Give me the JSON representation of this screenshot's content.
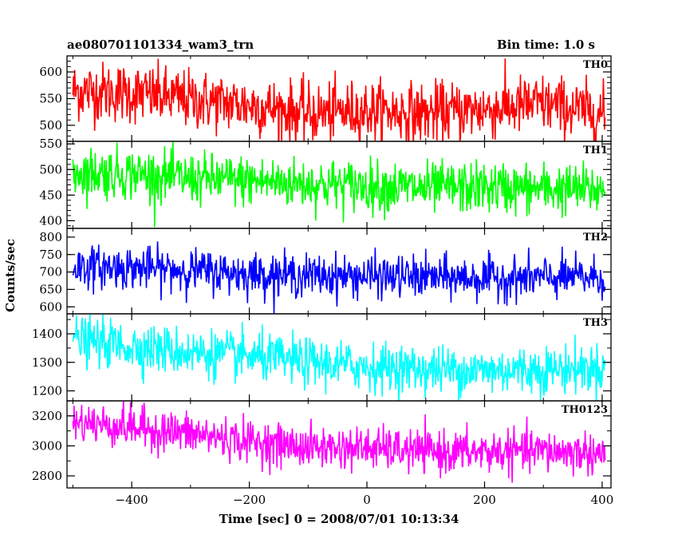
{
  "header": {
    "title": "ae080701101334_wam3_trn",
    "bin_time": "Bin time: 1.0 s"
  },
  "axes": {
    "ylabel": "Counts/sec",
    "xlabel": "Time [sec] 0 = 2008/07/01 10:13:34"
  },
  "chart_data": {
    "type": "line",
    "title": "ae080701101334_wam3_trn",
    "subtitle": "Bin time: 1.0 s",
    "xlabel": "Time [sec] 0 = 2008/07/01 10:13:34",
    "ylabel": "Counts/sec",
    "xlim": [
      -510,
      415
    ],
    "x_range": [
      -500,
      405
    ],
    "x_step": 1.0,
    "xticks": [
      -400,
      -200,
      0,
      200,
      400
    ],
    "grid": false,
    "series": [
      {
        "name": "TH0",
        "color": "#ff0000",
        "ylim": [
          470,
          630
        ],
        "yticks": [
          500,
          550,
          600
        ],
        "trend": [
          [
            -500,
            565
          ],
          [
            -400,
            560
          ],
          [
            -300,
            548
          ],
          [
            -200,
            538
          ],
          [
            -100,
            522
          ],
          [
            0,
            528
          ],
          [
            100,
            522
          ],
          [
            200,
            530
          ],
          [
            300,
            540
          ],
          [
            405,
            520
          ]
        ],
        "noise": 28
      },
      {
        "name": "TH1",
        "color": "#00ff00",
        "ylim": [
          385,
          555
        ],
        "yticks": [
          400,
          450,
          500,
          550
        ],
        "trend": [
          [
            -500,
            495
          ],
          [
            -400,
            492
          ],
          [
            -300,
            482
          ],
          [
            -200,
            478
          ],
          [
            -100,
            472
          ],
          [
            0,
            468
          ],
          [
            100,
            463
          ],
          [
            200,
            465
          ],
          [
            300,
            462
          ],
          [
            405,
            460
          ]
        ],
        "noise": 25
      },
      {
        "name": "TH2",
        "color": "#0000ff",
        "ylim": [
          580,
          825
        ],
        "yticks": [
          600,
          650,
          700,
          750,
          800
        ],
        "trend": [
          [
            -500,
            715
          ],
          [
            -400,
            712
          ],
          [
            -300,
            705
          ],
          [
            -200,
            695
          ],
          [
            -100,
            690
          ],
          [
            0,
            688
          ],
          [
            100,
            685
          ],
          [
            200,
            682
          ],
          [
            300,
            683
          ],
          [
            405,
            685
          ]
        ],
        "noise": 30
      },
      {
        "name": "TH3",
        "color": "#00ffff",
        "ylim": [
          1165,
          1470
        ],
        "yticks": [
          1200,
          1300,
          1400
        ],
        "trend": [
          [
            -500,
            1380
          ],
          [
            -400,
            1355
          ],
          [
            -300,
            1335
          ],
          [
            -200,
            1320
          ],
          [
            -100,
            1300
          ],
          [
            0,
            1285
          ],
          [
            100,
            1275
          ],
          [
            200,
            1272
          ],
          [
            300,
            1275
          ],
          [
            405,
            1280
          ]
        ],
        "noise": 42
      },
      {
        "name": "TH0123",
        "color": "#ff00ff",
        "ylim": [
          2720,
          3300
        ],
        "yticks": [
          2800,
          3000,
          3200
        ],
        "trend": [
          [
            -500,
            3160
          ],
          [
            -400,
            3125
          ],
          [
            -300,
            3080
          ],
          [
            -200,
            3030
          ],
          [
            -100,
            2990
          ],
          [
            0,
            2985
          ],
          [
            100,
            2960
          ],
          [
            200,
            2960
          ],
          [
            300,
            2965
          ],
          [
            405,
            2950
          ]
        ],
        "noise": 70
      }
    ]
  }
}
